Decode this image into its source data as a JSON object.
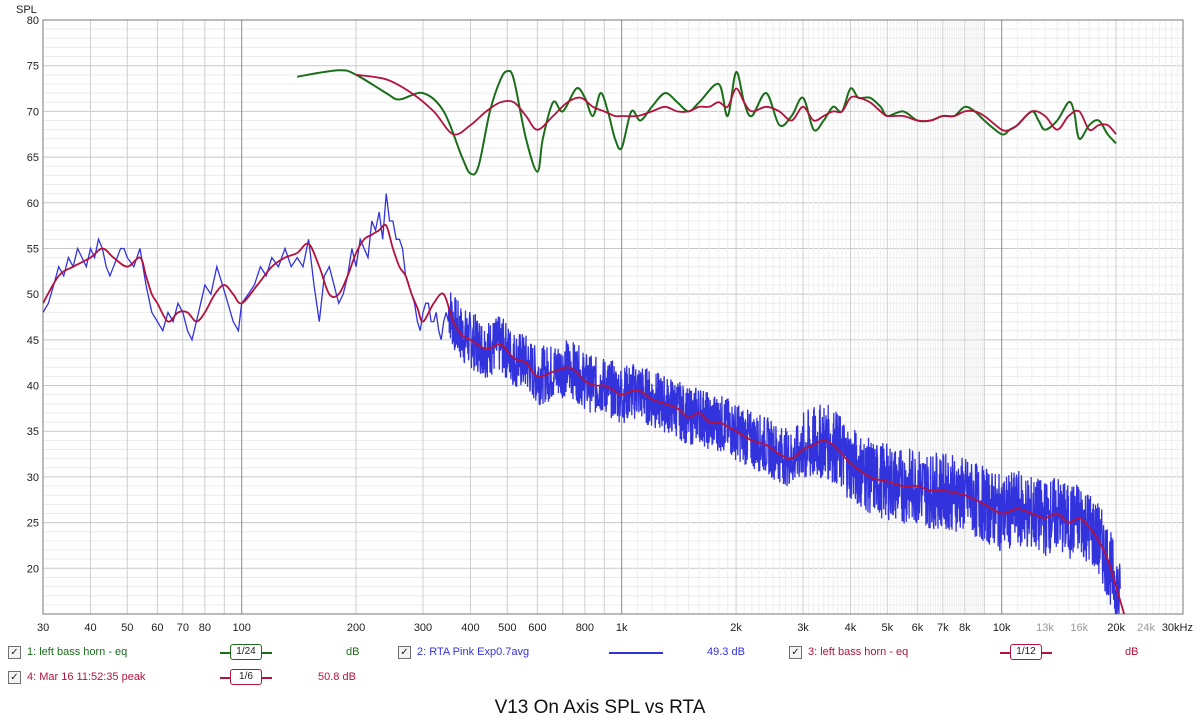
{
  "chart_data": {
    "type": "line",
    "title": "V13 On Axis SPL vs RTA",
    "ylabel": "SPL",
    "xlabel": "Hz",
    "x_scale": "log",
    "xlim": [
      30,
      30000
    ],
    "ylim": [
      15,
      80
    ],
    "grid": true,
    "x_tick_labels": [
      {
        "v": 30,
        "t": "30"
      },
      {
        "v": 40,
        "t": "40"
      },
      {
        "v": 50,
        "t": "50"
      },
      {
        "v": 60,
        "t": "60"
      },
      {
        "v": 70,
        "t": "70"
      },
      {
        "v": 80,
        "t": "80"
      },
      {
        "v": 100,
        "t": "100"
      },
      {
        "v": 200,
        "t": "200"
      },
      {
        "v": 300,
        "t": "300"
      },
      {
        "v": 400,
        "t": "400"
      },
      {
        "v": 500,
        "t": "500"
      },
      {
        "v": 600,
        "t": "600"
      },
      {
        "v": 800,
        "t": "800"
      },
      {
        "v": 1000,
        "t": "1k"
      },
      {
        "v": 2000,
        "t": "2k"
      },
      {
        "v": 3000,
        "t": "3k"
      },
      {
        "v": 4000,
        "t": "4k"
      },
      {
        "v": 5000,
        "t": "5k"
      },
      {
        "v": 6000,
        "t": "6k"
      },
      {
        "v": 7000,
        "t": "7k"
      },
      {
        "v": 8000,
        "t": "8k"
      },
      {
        "v": 10000,
        "t": "10k"
      },
      {
        "v": 13000,
        "t": "13k",
        "muted": true
      },
      {
        "v": 16000,
        "t": "16k",
        "muted": true
      },
      {
        "v": 20000,
        "t": "20k"
      },
      {
        "v": 24000,
        "t": "24k",
        "muted": true
      },
      {
        "v": 30000,
        "t": "30kHz"
      }
    ],
    "y_ticks": [
      20,
      25,
      30,
      35,
      40,
      45,
      50,
      55,
      60,
      65,
      70,
      75,
      80
    ],
    "series": [
      {
        "name": "1: left bass horn - eq",
        "color": "#1a6e1a",
        "x": [
          140,
          180,
          200,
          240,
          260,
          300,
          340,
          380,
          400,
          420,
          450,
          480,
          500,
          520,
          560,
          600,
          620,
          660,
          700,
          760,
          800,
          840,
          880,
          920,
          960,
          1000,
          1060,
          1120,
          1200,
          1300,
          1400,
          1500,
          1600,
          1800,
          1900,
          2000,
          2100,
          2200,
          2400,
          2600,
          2800,
          3000,
          3200,
          3400,
          3600,
          3800,
          4000,
          4200,
          4500,
          4800,
          5000,
          5500,
          6000,
          6500,
          7000,
          7500,
          8000,
          8500,
          9000,
          10000,
          10500,
          11000,
          12000,
          12500,
          13000,
          14000,
          15000,
          15500,
          16000,
          17000,
          18000,
          19000,
          20000
        ],
        "values": [
          73.8,
          74.5,
          74.0,
          72.0,
          71.3,
          72.0,
          70.0,
          65.0,
          63.2,
          64.0,
          70.0,
          73.5,
          74.4,
          73.5,
          67.0,
          63.4,
          67.0,
          71.0,
          70.0,
          72.5,
          71.5,
          69.5,
          72.0,
          70.0,
          67.0,
          66.0,
          70.0,
          69.0,
          70.5,
          72.0,
          71.0,
          70.0,
          71.0,
          73.0,
          69.5,
          74.3,
          71.0,
          69.5,
          72.0,
          68.5,
          69.5,
          71.5,
          68.0,
          69.0,
          70.5,
          70.0,
          72.5,
          71.5,
          71.5,
          70.5,
          69.5,
          70.0,
          69.0,
          69.0,
          69.5,
          69.5,
          70.5,
          70.0,
          69.0,
          67.5,
          68.0,
          68.5,
          70.0,
          69.0,
          68.0,
          69.0,
          71.0,
          70.0,
          67.0,
          68.5,
          69.0,
          67.5,
          66.5
        ]
      },
      {
        "name": "2: RTA Pink Exp0.7avg",
        "color": "#3333dd",
        "value_label": "49.3 dB",
        "x": [
          30,
          31,
          32,
          33,
          34,
          35,
          36,
          37,
          38,
          39,
          40,
          41,
          42,
          43,
          44,
          45,
          46,
          47,
          48,
          49,
          50,
          52,
          54,
          56,
          58,
          60,
          62,
          64,
          66,
          68,
          70,
          72,
          74,
          76,
          78,
          80,
          83,
          86,
          89,
          92,
          95,
          98,
          100,
          104,
          108,
          112,
          116,
          120,
          125,
          130,
          135,
          140,
          145,
          150,
          155,
          160,
          165,
          170,
          175,
          180,
          185,
          190,
          195,
          200,
          205,
          210,
          215,
          220,
          225,
          230,
          235,
          240,
          245,
          250,
          255,
          260,
          265,
          270,
          275,
          280,
          285,
          290,
          295,
          300,
          305,
          310,
          315,
          320,
          325,
          330,
          335,
          340,
          345,
          350
        ],
        "values": [
          48,
          49,
          51,
          53,
          52,
          54,
          53,
          55,
          54,
          53,
          55,
          54,
          56,
          55,
          53,
          52,
          53,
          54,
          55,
          55,
          54,
          53,
          55,
          51,
          48,
          47,
          46,
          48,
          47,
          49,
          48,
          46,
          45,
          47,
          49,
          51,
          50,
          53,
          51,
          49,
          47,
          46,
          49,
          50,
          51,
          53,
          52,
          54,
          53,
          55,
          53,
          54,
          53,
          56,
          51,
          47,
          52,
          53,
          51,
          49,
          50,
          52,
          55,
          53,
          56,
          55,
          54,
          58,
          57,
          59,
          56,
          61,
          58,
          58,
          56,
          56,
          55,
          52,
          51,
          50,
          49,
          47,
          46,
          48,
          49,
          49,
          47,
          47,
          48,
          46,
          45,
          47,
          48,
          47
        ]
      },
      {
        "name": "3: left bass horn - eq",
        "color": "#b3123c",
        "x": [
          200,
          240,
          280,
          320,
          360,
          400,
          440,
          480,
          520,
          560,
          600,
          660,
          720,
          780,
          840,
          900,
          960,
          1000,
          1100,
          1200,
          1300,
          1400,
          1500,
          1600,
          1700,
          1800,
          1900,
          2000,
          2100,
          2200,
          2400,
          2600,
          2800,
          3000,
          3200,
          3400,
          3600,
          3800,
          4000,
          4200,
          4500,
          4800,
          5000,
          5500,
          6000,
          6500,
          7000,
          7500,
          8000,
          8500,
          9000,
          10000,
          10500,
          11000,
          12000,
          13000,
          14000,
          15000,
          16000,
          17000,
          18000,
          19000,
          20000
        ],
        "values": [
          74.0,
          73.5,
          72.0,
          70.0,
          67.5,
          68.5,
          70.0,
          71.0,
          71.0,
          69.5,
          68.0,
          69.5,
          71.0,
          71.5,
          70.5,
          70.0,
          69.5,
          69.5,
          69.5,
          70.0,
          70.5,
          70.0,
          70.0,
          70.5,
          70.5,
          71.0,
          70.5,
          72.5,
          71.0,
          70.0,
          70.5,
          70.0,
          69.0,
          70.5,
          69.0,
          69.5,
          70.0,
          70.0,
          71.5,
          71.5,
          71.0,
          70.0,
          69.5,
          69.5,
          69.0,
          69.0,
          69.5,
          69.5,
          70.0,
          70.0,
          69.5,
          68.0,
          68.0,
          68.5,
          70.0,
          69.5,
          68.0,
          69.5,
          70.0,
          68.0,
          68.5,
          68.5,
          67.5
        ]
      },
      {
        "name": "4: Mar 16 11:52:35 peak",
        "color": "#b3123c",
        "value_label": "50.8 dB",
        "x": [
          30,
          33,
          36,
          40,
          43,
          46,
          50,
          54,
          56,
          58,
          60,
          64,
          68,
          72,
          76,
          80,
          85,
          90,
          95,
          100,
          110,
          120,
          130,
          140,
          150,
          160,
          170,
          180,
          190,
          200,
          210,
          220,
          230,
          240,
          250,
          260,
          270,
          280,
          290,
          300,
          320,
          340,
          360,
          380,
          400,
          440,
          480,
          520,
          560,
          600,
          660,
          720,
          760,
          800,
          850,
          900,
          950,
          1000,
          1100,
          1200,
          1300,
          1400,
          1500,
          1600,
          1700,
          1800,
          1900,
          2000,
          2200,
          2400,
          2600,
          2800,
          3000,
          3200,
          3400,
          3600,
          3800,
          4000,
          4500,
          5000,
          5500,
          6000,
          6500,
          7000,
          8000,
          9000,
          10000,
          11000,
          12000,
          13000,
          14000,
          15000,
          16000,
          17000,
          18000,
          19000,
          20000,
          21000
        ],
        "values": [
          49.0,
          52.0,
          53.0,
          54.0,
          55.0,
          54.0,
          53.0,
          54.0,
          52.0,
          50.0,
          49.0,
          47.0,
          48.0,
          48.0,
          47.0,
          48.0,
          50.0,
          51.0,
          50.0,
          49.0,
          51.0,
          53.0,
          54.0,
          54.5,
          55.5,
          53.0,
          50.0,
          50.0,
          52.0,
          54.5,
          56.0,
          56.5,
          57.0,
          57.5,
          55.0,
          53.0,
          52.0,
          50.0,
          48.5,
          47.0,
          49.0,
          50.0,
          47.0,
          45.5,
          45.0,
          44.0,
          44.5,
          43.0,
          42.5,
          41.0,
          41.5,
          42.0,
          41.5,
          40.5,
          40.0,
          40.0,
          39.5,
          39.0,
          39.5,
          38.5,
          38.0,
          37.5,
          36.5,
          37.0,
          36.0,
          36.0,
          35.5,
          35.0,
          34.0,
          33.5,
          32.5,
          32.0,
          33.0,
          33.5,
          34.0,
          33.5,
          32.5,
          31.5,
          30.0,
          29.5,
          29.0,
          29.0,
          28.5,
          28.5,
          28.0,
          27.0,
          26.0,
          26.5,
          26.0,
          25.5,
          26.0,
          25.0,
          25.5,
          24.5,
          23.0,
          21.0,
          18.0,
          15.0
        ]
      }
    ]
  },
  "legend": {
    "row1": [
      {
        "label": "1: left bass horn - eq",
        "smoothing": "1/24",
        "value": "dB",
        "color": "#1a6e1a"
      },
      {
        "label": "2: RTA Pink Exp0.7avg",
        "value": "49.3 dB",
        "color": "#3333dd"
      },
      {
        "label": "3: left bass horn - eq",
        "smoothing": "1/12",
        "value": "dB",
        "color": "#b3123c"
      }
    ],
    "row2": [
      {
        "label": "4: Mar 16 11:52:35 peak",
        "smoothing": "1/6",
        "value": "50.8 dB",
        "color": "#b3123c"
      }
    ],
    "check_mark": "✓"
  },
  "title": "V13 On Axis SPL vs RTA"
}
